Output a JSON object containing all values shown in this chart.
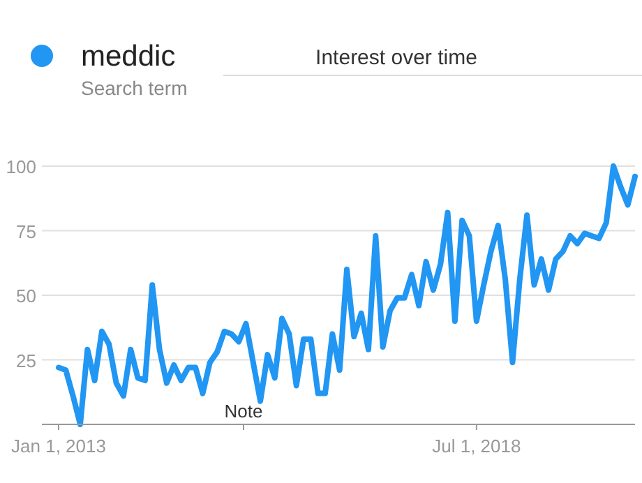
{
  "chart_data": {
    "type": "line",
    "title": "Interest over time",
    "subtitle": "Search term",
    "categories": [
      "Jan 1, 2013",
      null,
      null,
      null,
      null,
      null,
      null,
      null,
      null,
      null,
      null,
      null,
      null,
      null,
      null,
      null,
      null,
      null,
      null,
      null,
      null,
      null,
      null,
      null,
      null,
      null,
      null,
      null,
      null,
      null,
      null,
      null,
      null,
      null,
      null,
      null,
      null,
      null,
      null,
      null,
      null,
      null,
      null,
      null,
      null,
      null,
      null,
      null,
      null,
      null,
      null,
      null,
      null,
      null,
      null,
      null,
      null,
      null,
      "Jul 1, 2018",
      null,
      null,
      null,
      null,
      null,
      null,
      null,
      null,
      null,
      null,
      null,
      null,
      null,
      null,
      null,
      null,
      null,
      null,
      null,
      null,
      null,
      null
    ],
    "series": [
      {
        "name": "meddic",
        "color": "#2196f3",
        "values": [
          22,
          21,
          11,
          0,
          29,
          17,
          36,
          31,
          16,
          11,
          29,
          18,
          17,
          54,
          29,
          16,
          23,
          17,
          22,
          22,
          12,
          24,
          28,
          36,
          35,
          32,
          39,
          24,
          9,
          27,
          18,
          41,
          35,
          15,
          33,
          33,
          12,
          12,
          35,
          21,
          60,
          34,
          43,
          29,
          73,
          30,
          44,
          49,
          49,
          58,
          46,
          63,
          52,
          62,
          82,
          40,
          79,
          73,
          40,
          54,
          67,
          77,
          56,
          24,
          56,
          81,
          54,
          64,
          52,
          64,
          67,
          73,
          70,
          74,
          73,
          72,
          78,
          100,
          92,
          85,
          96
        ]
      }
    ],
    "ylim": [
      0,
      100
    ],
    "yticks": [
      25,
      50,
      75,
      100
    ],
    "grid": "y",
    "legend": "top left",
    "marker": "none",
    "line_style": "solid",
    "annotations": [
      "Note"
    ]
  }
}
